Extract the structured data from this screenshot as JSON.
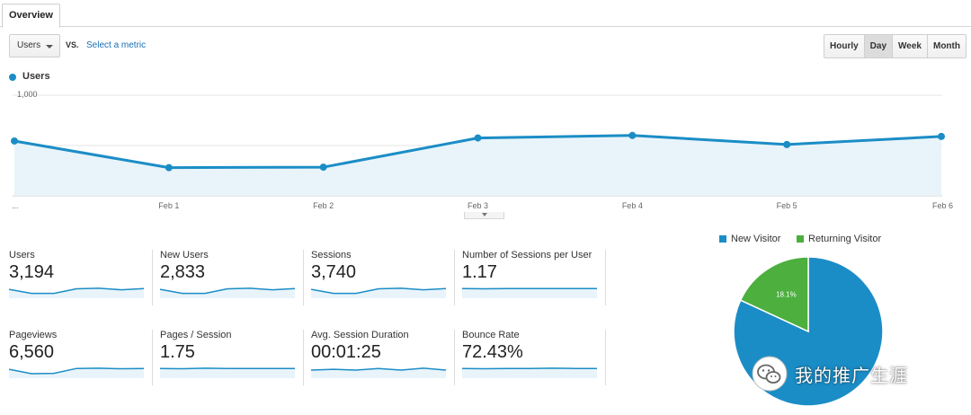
{
  "tabs": [
    {
      "label": "Overview"
    }
  ],
  "metric_selector": {
    "value": "Users",
    "vs_label": "VS.",
    "select_metric_link": "Select a metric"
  },
  "granularity": {
    "options": [
      "Hourly",
      "Day",
      "Week",
      "Month"
    ],
    "selected": "Day"
  },
  "colors": {
    "line": "#1b8dc6",
    "area": "#e8f4fa",
    "new_visitor": "#1b8dc6",
    "returning_visitor": "#4caf3e"
  },
  "chart_data": {
    "type": "area",
    "series": [
      {
        "name": "Users",
        "values": [
          545,
          280,
          285,
          575,
          600,
          510,
          590
        ]
      }
    ],
    "x": [
      "...",
      "Feb 1",
      "Feb 2",
      "Feb 3",
      "Feb 4",
      "Feb 5",
      "Feb 6"
    ],
    "ylim": [
      0,
      1000
    ],
    "yticks": [
      "500",
      "1,000"
    ],
    "legend": "top-left",
    "grid": true
  },
  "scorecards": [
    {
      "label": "Users",
      "value": "3,194",
      "trend": [
        0.55,
        0.3,
        0.3,
        0.58,
        0.62,
        0.52,
        0.6
      ]
    },
    {
      "label": "New Users",
      "value": "2,833",
      "trend": [
        0.55,
        0.3,
        0.3,
        0.58,
        0.62,
        0.52,
        0.6
      ]
    },
    {
      "label": "Sessions",
      "value": "3,740",
      "trend": [
        0.55,
        0.3,
        0.3,
        0.58,
        0.62,
        0.52,
        0.6
      ]
    },
    {
      "label": "Number of Sessions per User",
      "value": "1.17",
      "trend": [
        0.6,
        0.58,
        0.6,
        0.6,
        0.6,
        0.6,
        0.6
      ]
    },
    {
      "label": "Pageviews",
      "value": "6,560",
      "trend": [
        0.55,
        0.28,
        0.3,
        0.6,
        0.62,
        0.58,
        0.6
      ]
    },
    {
      "label": "Pages / Session",
      "value": "1.75",
      "trend": [
        0.6,
        0.58,
        0.62,
        0.6,
        0.6,
        0.6,
        0.6
      ]
    },
    {
      "label": "Avg. Session Duration",
      "value": "00:01:25",
      "trend": [
        0.5,
        0.55,
        0.5,
        0.6,
        0.5,
        0.62,
        0.5
      ]
    },
    {
      "label": "Bounce Rate",
      "value": "72.43%",
      "trend": [
        0.6,
        0.58,
        0.6,
        0.6,
        0.62,
        0.6,
        0.6
      ]
    }
  ],
  "pie": {
    "legend": [
      {
        "name": "New Visitor"
      },
      {
        "name": "Returning Visitor"
      }
    ],
    "slices": [
      {
        "name": "New Visitor",
        "value": 81.9
      },
      {
        "name": "Returning Visitor",
        "value": 18.1
      }
    ],
    "label": "18.1%"
  },
  "watermark": {
    "text": "我的推广生涯",
    "icon": "wechat-icon"
  }
}
